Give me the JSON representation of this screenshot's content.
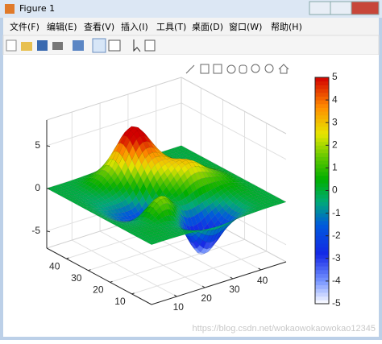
{
  "window": {
    "title": "Figure 1"
  },
  "menu": [
    "文件(F)",
    "编辑(E)",
    "查看(V)",
    "插入(I)",
    "工具(T)",
    "桌面(D)",
    "窗口(W)",
    "帮助(H)"
  ],
  "chart_data": {
    "type": "surface",
    "x": [
      1,
      9,
      17,
      25,
      33,
      41,
      49
    ],
    "y": [
      1,
      9,
      17,
      25,
      33,
      41,
      49
    ],
    "z": [
      [
        0,
        0,
        -0.11,
        -0.3,
        -0.11,
        0,
        0
      ],
      [
        0,
        0.05,
        -0.58,
        -4.76,
        -2.1,
        -0.06,
        0
      ],
      [
        0,
        -0.14,
        1.86,
        -0.72,
        -0.27,
        0.5,
        0
      ],
      [
        0,
        -1.33,
        -1.65,
        0.98,
        2.94,
        1.41,
        0
      ],
      [
        0,
        -0.48,
        0.23,
        3.69,
        2.43,
        0.58,
        0
      ],
      [
        0,
        0.08,
        2.1,
        5.86,
        2.2,
        0.13,
        0
      ],
      [
        0,
        0,
        0.11,
        0.3,
        0.11,
        0,
        0
      ]
    ],
    "xlim": [
      1,
      49
    ],
    "ylim": [
      1,
      49
    ],
    "zlim": [
      -7,
      8
    ],
    "xticks": [
      10,
      20,
      30,
      40
    ],
    "yticks": [
      10,
      20,
      30,
      40
    ],
    "zticks": [
      -5,
      0,
      5
    ],
    "clim": [
      -5,
      5
    ],
    "colorbar_ticks": [
      -5,
      -4,
      -3,
      -2,
      -1,
      0,
      1,
      2,
      3,
      4,
      5
    ],
    "grid": true
  },
  "watermark": "https://blog.csdn.net/wokaowokaowokao12345"
}
